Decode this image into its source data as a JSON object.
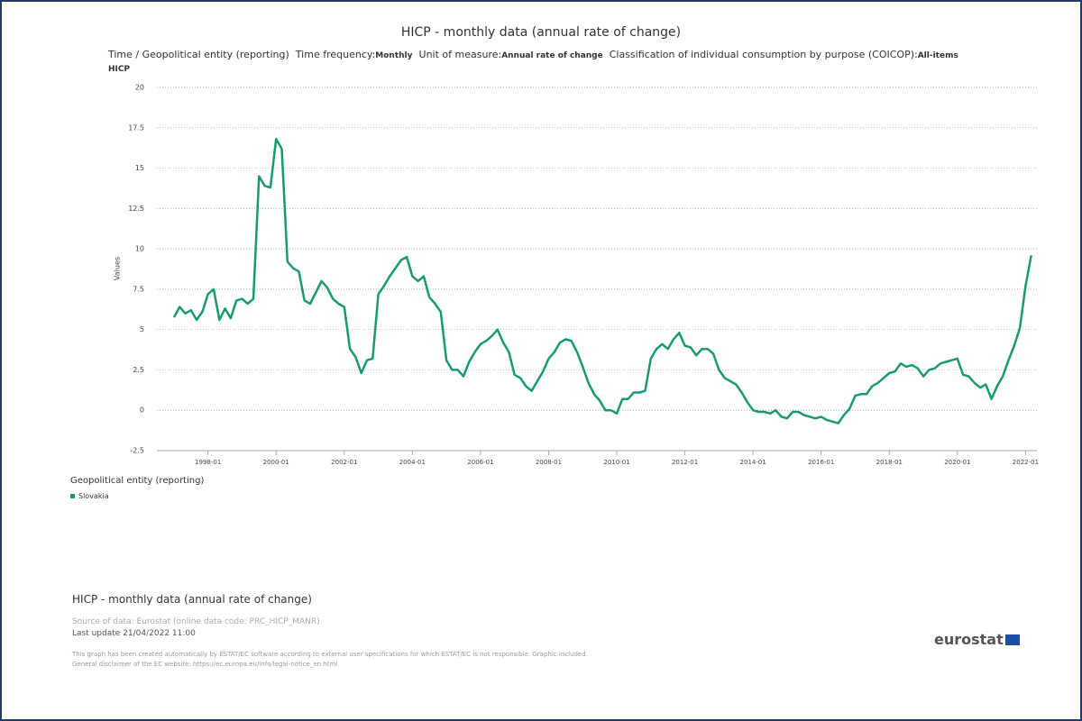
{
  "chart_data": {
    "type": "line",
    "title": "HICP - monthly data (annual rate of change)",
    "subtitle": {
      "dimension": "Time / Geopolitical entity (reporting)",
      "filters": [
        {
          "label": "Time frequency:",
          "value": "Monthly"
        },
        {
          "label": "Unit of measure:",
          "value": "Annual rate of change"
        },
        {
          "label": "Classification of individual consumption by purpose (COICOP):",
          "value": "All-items HICP"
        }
      ]
    },
    "y_label": "Values",
    "legend_title": "Geopolitical entity (reporting)",
    "x": [
      "1997-01",
      "1997-03",
      "1997-05",
      "1997-07",
      "1997-09",
      "1997-11",
      "1998-01",
      "1998-03",
      "1998-05",
      "1998-07",
      "1998-09",
      "1998-11",
      "1999-01",
      "1999-03",
      "1999-05",
      "1999-07",
      "1999-09",
      "1999-11",
      "2000-01",
      "2000-03",
      "2000-05",
      "2000-07",
      "2000-09",
      "2000-11",
      "2001-01",
      "2001-03",
      "2001-05",
      "2001-07",
      "2001-09",
      "2001-11",
      "2002-01",
      "2002-03",
      "2002-05",
      "2002-07",
      "2002-09",
      "2002-11",
      "2003-01",
      "2003-03",
      "2003-05",
      "2003-07",
      "2003-09",
      "2003-11",
      "2004-01",
      "2004-03",
      "2004-05",
      "2004-07",
      "2004-09",
      "2004-11",
      "2005-01",
      "2005-03",
      "2005-05",
      "2005-07",
      "2005-09",
      "2005-11",
      "2006-01",
      "2006-03",
      "2006-05",
      "2006-07",
      "2006-09",
      "2006-11",
      "2007-01",
      "2007-03",
      "2007-05",
      "2007-07",
      "2007-09",
      "2007-11",
      "2008-01",
      "2008-03",
      "2008-05",
      "2008-07",
      "2008-09",
      "2008-11",
      "2009-01",
      "2009-03",
      "2009-05",
      "2009-07",
      "2009-09",
      "2009-11",
      "2010-01",
      "2010-03",
      "2010-05",
      "2010-07",
      "2010-09",
      "2010-11",
      "2011-01",
      "2011-03",
      "2011-05",
      "2011-07",
      "2011-09",
      "2011-11",
      "2012-01",
      "2012-03",
      "2012-05",
      "2012-07",
      "2012-09",
      "2012-11",
      "2013-01",
      "2013-03",
      "2013-05",
      "2013-07",
      "2013-09",
      "2013-11",
      "2014-01",
      "2014-03",
      "2014-05",
      "2014-07",
      "2014-09",
      "2014-11",
      "2015-01",
      "2015-03",
      "2015-05",
      "2015-07",
      "2015-09",
      "2015-11",
      "2016-01",
      "2016-03",
      "2016-05",
      "2016-07",
      "2016-09",
      "2016-11",
      "2017-01",
      "2017-03",
      "2017-05",
      "2017-07",
      "2017-09",
      "2017-11",
      "2018-01",
      "2018-03",
      "2018-05",
      "2018-07",
      "2018-09",
      "2018-11",
      "2019-01",
      "2019-03",
      "2019-05",
      "2019-07",
      "2019-09",
      "2019-11",
      "2020-01",
      "2020-03",
      "2020-05",
      "2020-07",
      "2020-09",
      "2020-11",
      "2021-01",
      "2021-03",
      "2021-05",
      "2021-07",
      "2021-09",
      "2021-11",
      "2022-01",
      "2022-03"
    ],
    "series": [
      {
        "name": "Slovakia",
        "color": "#1a9a6c",
        "values": [
          5.75,
          6.4,
          6.0,
          6.2,
          5.6,
          6.1,
          7.2,
          7.5,
          5.6,
          6.3,
          5.7,
          6.8,
          6.9,
          6.6,
          6.9,
          14.5,
          13.9,
          13.8,
          16.8,
          16.2,
          9.2,
          8.8,
          8.6,
          6.8,
          6.6,
          7.3,
          8.0,
          7.6,
          6.9,
          6.6,
          6.4,
          3.8,
          3.3,
          2.3,
          3.1,
          3.2,
          7.2,
          7.7,
          8.3,
          8.8,
          9.3,
          9.5,
          8.3,
          8.0,
          8.3,
          7.0,
          6.6,
          6.1,
          3.1,
          2.5,
          2.5,
          2.1,
          3.0,
          3.6,
          4.1,
          4.3,
          4.6,
          5.0,
          4.2,
          3.6,
          2.2,
          2.0,
          1.5,
          1.2,
          1.8,
          2.4,
          3.2,
          3.6,
          4.2,
          4.4,
          4.3,
          3.6,
          2.7,
          1.7,
          1.0,
          0.6,
          0.0,
          0.0,
          -0.2,
          0.7,
          0.7,
          1.1,
          1.1,
          1.2,
          3.2,
          3.8,
          4.1,
          3.8,
          4.4,
          4.8,
          4.0,
          3.9,
          3.4,
          3.8,
          3.8,
          3.5,
          2.5,
          2.0,
          1.8,
          1.6,
          1.1,
          0.5,
          0.0,
          -0.1,
          -0.1,
          -0.2,
          0.0,
          -0.4,
          -0.5,
          -0.1,
          -0.1,
          -0.3,
          -0.4,
          -0.5,
          -0.4,
          -0.6,
          -0.7,
          -0.8,
          -0.3,
          0.1,
          0.9,
          1.0,
          1.0,
          1.5,
          1.7,
          2.0,
          2.3,
          2.4,
          2.9,
          2.7,
          2.8,
          2.6,
          2.1,
          2.5,
          2.6,
          2.9,
          3.0,
          3.1,
          3.2,
          2.2,
          2.1,
          1.7,
          1.4,
          1.6,
          0.7,
          1.5,
          2.1,
          3.1,
          4.0,
          5.1,
          7.7,
          9.6
        ]
      }
    ],
    "xlim": [
      "1996-07",
      "2022-05"
    ],
    "xticks": [
      "1998-01",
      "2000-01",
      "2002-01",
      "2004-01",
      "2006-01",
      "2008-01",
      "2010-01",
      "2012-01",
      "2014-01",
      "2016-01",
      "2018-01",
      "2020-01",
      "2022-01"
    ],
    "ylim": [
      -2.5,
      20
    ],
    "yticks": [
      -2.5,
      0,
      2.5,
      5,
      7.5,
      10,
      12.5,
      15,
      17.5,
      20
    ],
    "grid": true
  },
  "footer": {
    "title": "HICP - monthly data (annual rate of change)",
    "source": "Source of data: Eurostat (online data code: PRC_HICP_MANR)",
    "last_update": "Last update 21/04/2022 11:00",
    "disclaimer": [
      "This graph has been created automatically by ESTAT/EC software according to external user specifications for which ESTAT/EC is not responsible. Graphic included.",
      "General disclaimer of the EC website: https://ec.europa.eu/info/legal-notice_en.html"
    ],
    "logo": "eurostat"
  }
}
